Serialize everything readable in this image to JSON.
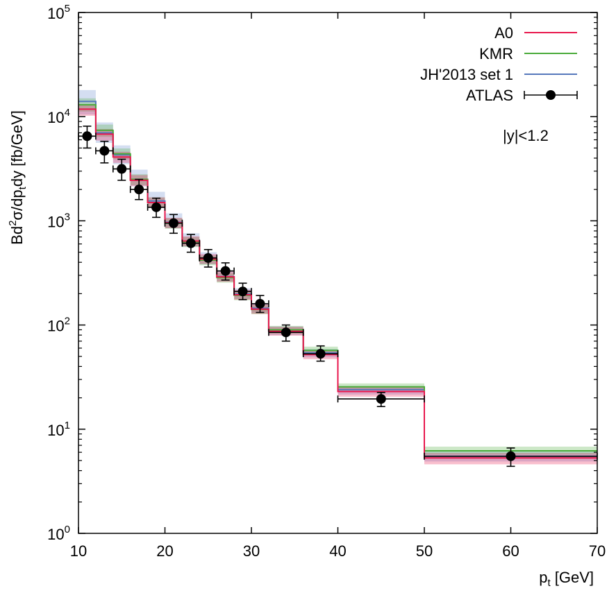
{
  "chart_data": {
    "type": "step-histogram",
    "xlabel": "p_t [GeV]",
    "ylabel": "Bd²σ/dp_tdy [fb/GeV]",
    "xlim": [
      10,
      70
    ],
    "ylim": [
      1,
      100000
    ],
    "yscale": "log",
    "x_ticks": [
      10,
      20,
      30,
      40,
      50,
      60,
      70
    ],
    "y_ticks": [
      {
        "value": 1,
        "base": "10",
        "exp": "0"
      },
      {
        "value": 10,
        "base": "10",
        "exp": "1"
      },
      {
        "value": 100,
        "base": "10",
        "exp": "2"
      },
      {
        "value": 1000,
        "base": "10",
        "exp": "3"
      },
      {
        "value": 10000,
        "base": "10",
        "exp": "4"
      },
      {
        "value": 100000,
        "base": "10",
        "exp": "5"
      }
    ],
    "bins": [
      [
        10,
        12
      ],
      [
        12,
        14
      ],
      [
        14,
        16
      ],
      [
        16,
        18
      ],
      [
        18,
        20
      ],
      [
        20,
        22
      ],
      [
        22,
        24
      ],
      [
        24,
        26
      ],
      [
        26,
        28
      ],
      [
        28,
        30
      ],
      [
        30,
        32
      ],
      [
        32,
        36
      ],
      [
        36,
        40
      ],
      [
        40,
        50
      ],
      [
        50,
        70
      ]
    ],
    "series": [
      {
        "name": "A0",
        "color": "#e8174d",
        "band_color": "#e8174d",
        "values": [
          11800,
          6800,
          4100,
          2450,
          1500,
          960,
          640,
          430,
          290,
          195,
          142,
          87,
          52,
          23,
          5.3
        ],
        "band_lo": [
          10200,
          5900,
          3600,
          2150,
          1330,
          850,
          570,
          385,
          260,
          175,
          128,
          79,
          47,
          20.5,
          4.6
        ],
        "band_hi": [
          13200,
          7600,
          4600,
          2750,
          1680,
          1070,
          710,
          480,
          325,
          218,
          158,
          96,
          57,
          25.5,
          5.9
        ]
      },
      {
        "name": "KMR",
        "color": "#4aab3a",
        "band_color": "#4aab3a",
        "values": [
          13000,
          7400,
          4400,
          2500,
          1500,
          950,
          630,
          420,
          285,
          193,
          141,
          90,
          57,
          25.5,
          6.2
        ],
        "band_lo": [
          11200,
          6400,
          3900,
          2200,
          1330,
          840,
          560,
          375,
          255,
          173,
          127,
          82,
          52,
          23.5,
          5.7
        ],
        "band_hi": [
          15000,
          8400,
          4950,
          2800,
          1680,
          1060,
          700,
          465,
          315,
          213,
          155,
          98,
          62,
          27.5,
          6.8
        ]
      },
      {
        "name": "JH'2013 set 1",
        "color": "#5577bb",
        "band_color": "#6688cc",
        "values": [
          14000,
          7000,
          4300,
          2500,
          1550,
          970,
          640,
          430,
          292,
          198,
          145,
          88,
          54,
          24,
          5.5
        ],
        "band_lo": [
          10500,
          5600,
          3500,
          2150,
          1330,
          850,
          565,
          382,
          262,
          178,
          130,
          80,
          49,
          21.5,
          4.9
        ],
        "band_hi": [
          18000,
          8800,
          5300,
          3100,
          1900,
          1180,
          760,
          500,
          335,
          225,
          162,
          97,
          59,
          26,
          6.1
        ]
      }
    ],
    "data_points": {
      "name": "ATLAS",
      "x": [
        11,
        13,
        15,
        17,
        19,
        21,
        23,
        25,
        27,
        29,
        31,
        34,
        38,
        45,
        60
      ],
      "y": [
        6500,
        4700,
        3150,
        2000,
        1350,
        950,
        610,
        440,
        330,
        210,
        160,
        85,
        53,
        19.5,
        5.5
      ],
      "y_lo": [
        5000,
        3600,
        2450,
        1600,
        1080,
        760,
        500,
        360,
        270,
        175,
        132,
        70,
        45,
        16.5,
        4.4
      ],
      "y_hi": [
        8100,
        5800,
        3900,
        2500,
        1650,
        1150,
        740,
        530,
        395,
        252,
        192,
        100,
        63,
        22.5,
        6.6
      ],
      "x_lo": [
        10,
        12,
        14,
        16,
        18,
        20,
        22,
        24,
        26,
        28,
        30,
        32,
        36,
        40,
        50
      ],
      "x_hi": [
        12,
        14,
        16,
        18,
        20,
        22,
        24,
        26,
        28,
        30,
        32,
        36,
        40,
        50,
        70
      ]
    },
    "legend": [
      {
        "label": "A0",
        "color": "#e8174d",
        "kind": "line"
      },
      {
        "label": "KMR",
        "color": "#4aab3a",
        "kind": "line"
      },
      {
        "label": "JH'2013 set 1",
        "color": "#5577bb",
        "kind": "line"
      },
      {
        "label": "ATLAS",
        "color": "#000000",
        "kind": "point"
      }
    ],
    "legend_position": "top-right",
    "annotation": "|y|<1.2"
  }
}
